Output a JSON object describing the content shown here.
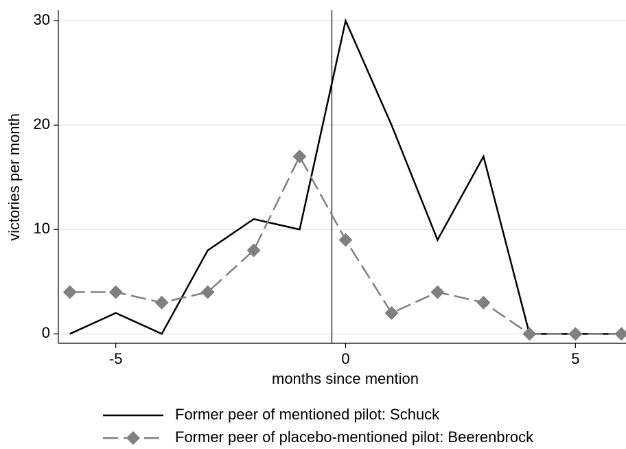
{
  "chart_data": {
    "type": "line",
    "x_label": "months since mention",
    "y_label": "victories per month",
    "x": [
      -6,
      -5,
      -4,
      -3,
      -2,
      -1,
      0,
      1,
      2,
      3,
      4,
      5,
      6
    ],
    "series": [
      {
        "name": "Former peer of mentioned pilot: Schuck",
        "color": "#000000",
        "dash": false,
        "marker": false,
        "values": [
          0,
          2,
          0,
          8,
          11,
          10,
          30,
          20,
          9,
          17,
          0,
          0,
          0
        ]
      },
      {
        "name": "Former peer of placebo-mentioned pilot: Beerenbrock",
        "color": "#808080",
        "dash": true,
        "marker": true,
        "values": [
          4,
          4,
          3,
          4,
          8,
          17,
          9,
          2,
          4,
          3,
          0,
          0,
          0
        ]
      }
    ],
    "vline": -0.3,
    "xlim": [
      -6.25,
      6.1
    ],
    "ylim": [
      -0.9,
      31
    ],
    "xticks": [
      -5,
      0,
      5
    ],
    "yticks": [
      0,
      10,
      20,
      30
    ],
    "grid": true,
    "legend": "bottom"
  }
}
